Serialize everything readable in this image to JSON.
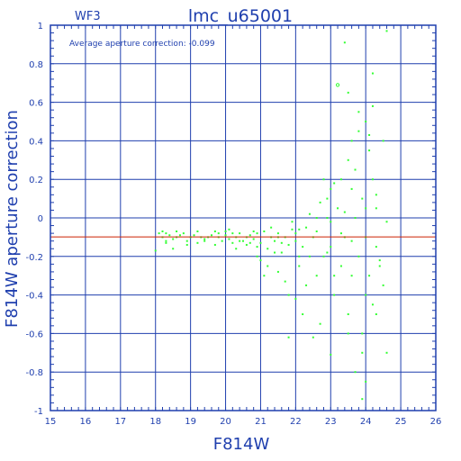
{
  "chart_data": {
    "type": "scatter",
    "title": "lmc_u65001",
    "chip_label": "WF3",
    "annotation": "Average aperture correction: -0.099",
    "xlabel": "F814W",
    "ylabel": "F814W aperture correction",
    "xlim": [
      15,
      26
    ],
    "ylim": [
      -1,
      1
    ],
    "x_ticks": [
      15,
      16,
      17,
      18,
      19,
      20,
      21,
      22,
      23,
      24,
      25,
      26
    ],
    "y_ticks": [
      -1,
      -0.8,
      -0.6,
      -0.4,
      -0.2,
      0,
      0.2,
      0.4,
      0.6,
      0.8,
      1
    ],
    "y_tick_labels": [
      "-1",
      "-0.8",
      "-0.6",
      "-0.4",
      "-0.2",
      "0",
      "0.2",
      "0.4",
      "0.6",
      "0.8",
      "1"
    ],
    "grid": true,
    "reference_line": -0.099,
    "colors": {
      "axes": "#1f3fae",
      "points": "#33ff33",
      "reference_line": "#cc2200"
    },
    "points": [
      [
        18.1,
        -0.08
      ],
      [
        18.2,
        -0.1
      ],
      [
        18.3,
        -0.12
      ],
      [
        18.2,
        -0.07
      ],
      [
        18.4,
        -0.09
      ],
      [
        18.5,
        -0.11
      ],
      [
        18.3,
        -0.08
      ],
      [
        18.6,
        -0.1
      ],
      [
        18.7,
        -0.09
      ],
      [
        18.9,
        -0.12
      ],
      [
        19.0,
        -0.1
      ],
      [
        18.8,
        -0.08
      ],
      [
        19.2,
        -0.13
      ],
      [
        19.4,
        -0.11
      ],
      [
        19.6,
        -0.09
      ],
      [
        19.7,
        -0.07
      ],
      [
        19.8,
        -0.1
      ],
      [
        19.9,
        -0.12
      ],
      [
        20.0,
        -0.09
      ],
      [
        20.1,
        -0.11
      ],
      [
        20.2,
        -0.13
      ],
      [
        20.3,
        -0.1
      ],
      [
        20.4,
        -0.08
      ],
      [
        20.5,
        -0.12
      ],
      [
        20.6,
        -0.14
      ],
      [
        20.7,
        -0.09
      ],
      [
        20.8,
        -0.11
      ],
      [
        20.9,
        -0.15
      ],
      [
        21.0,
        -0.13
      ],
      [
        21.1,
        -0.07
      ],
      [
        21.2,
        -0.16
      ],
      [
        21.3,
        -0.1
      ],
      [
        21.4,
        -0.12
      ],
      [
        21.5,
        -0.08
      ],
      [
        21.6,
        -0.18
      ],
      [
        21.7,
        -0.1
      ],
      [
        21.8,
        -0.14
      ],
      [
        21.9,
        -0.06
      ],
      [
        22.0,
        -0.12
      ],
      [
        22.1,
        -0.2
      ],
      [
        20.0,
        -0.07
      ],
      [
        20.2,
        -0.08
      ],
      [
        19.5,
        -0.1
      ],
      [
        19.1,
        -0.09
      ],
      [
        18.9,
        -0.14
      ],
      [
        18.5,
        -0.16
      ],
      [
        18.0,
        -0.17
      ],
      [
        19.3,
        -0.1
      ],
      [
        20.6,
        -0.1
      ],
      [
        20.9,
        -0.08
      ],
      [
        21.0,
        -0.22
      ],
      [
        21.2,
        -0.25
      ],
      [
        21.1,
        -0.3
      ],
      [
        21.5,
        -0.28
      ],
      [
        21.7,
        -0.33
      ],
      [
        21.8,
        -0.4
      ],
      [
        22.0,
        -0.42
      ],
      [
        22.1,
        -0.25
      ],
      [
        22.2,
        -0.15
      ],
      [
        22.3,
        -0.05
      ],
      [
        22.4,
        0.02
      ],
      [
        22.5,
        -0.1
      ],
      [
        22.6,
        -0.3
      ],
      [
        22.7,
        -0.55
      ],
      [
        22.8,
        -0.2
      ],
      [
        22.9,
        0.1
      ],
      [
        23.0,
        -0.15
      ],
      [
        23.0,
        0.15
      ],
      [
        23.1,
        -0.4
      ],
      [
        23.2,
        0.05
      ],
      [
        23.3,
        -0.25
      ],
      [
        23.3,
        0.2
      ],
      [
        23.4,
        -0.1
      ],
      [
        23.5,
        0.3
      ],
      [
        23.5,
        -0.5
      ],
      [
        23.6,
        0.4
      ],
      [
        23.6,
        -0.3
      ],
      [
        23.7,
        0.0
      ],
      [
        23.7,
        0.25
      ],
      [
        23.8,
        -0.2
      ],
      [
        23.8,
        0.55
      ],
      [
        23.9,
        -0.6
      ],
      [
        23.9,
        0.1
      ],
      [
        24.0,
        -0.4
      ],
      [
        24.0,
        0.5
      ],
      [
        24.0,
        -0.1
      ],
      [
        24.1,
        0.35
      ],
      [
        24.1,
        -0.3
      ],
      [
        24.2,
        0.58
      ],
      [
        24.2,
        0.2
      ],
      [
        24.3,
        -0.15
      ],
      [
        24.3,
        0.05
      ],
      [
        24.4,
        -0.25
      ],
      [
        24.5,
        0.4
      ],
      [
        24.6,
        -0.02
      ],
      [
        23.4,
        0.91
      ],
      [
        23.2,
        0.69
      ],
      [
        24.6,
        0.97
      ],
      [
        23.0,
        -0.71
      ],
      [
        23.9,
        -0.94
      ],
      [
        24.6,
        -0.7
      ],
      [
        23.5,
        -0.6
      ],
      [
        22.5,
        -0.62
      ],
      [
        21.8,
        -0.62
      ],
      [
        22.2,
        -0.5
      ],
      [
        23.1,
        -0.3
      ],
      [
        22.7,
        0.08
      ],
      [
        23.8,
        0.45
      ],
      [
        24.1,
        0.43
      ],
      [
        23.3,
        -0.08
      ],
      [
        22.9,
        -0.18
      ],
      [
        22.4,
        -0.2
      ],
      [
        21.9,
        -0.02
      ],
      [
        22.6,
        -0.07
      ],
      [
        23.6,
        -0.12
      ],
      [
        24.4,
        -0.22
      ],
      [
        24.2,
        -0.45
      ],
      [
        23.9,
        -0.7
      ],
      [
        22.3,
        -0.35
      ],
      [
        21.6,
        -0.13
      ],
      [
        21.3,
        -0.05
      ],
      [
        20.8,
        -0.07
      ],
      [
        20.4,
        -0.12
      ],
      [
        19.8,
        -0.08
      ],
      [
        19.2,
        -0.07
      ],
      [
        18.6,
        -0.07
      ],
      [
        18.3,
        -0.13
      ],
      [
        22.8,
        0.2
      ],
      [
        23.1,
        0.18
      ],
      [
        23.6,
        0.15
      ],
      [
        24.3,
        0.12
      ],
      [
        24.0,
        0.05
      ],
      [
        23.4,
        0.03
      ],
      [
        23.0,
        -0.02
      ],
      [
        22.6,
        0.0
      ],
      [
        22.0,
        -0.08
      ],
      [
        21.4,
        -0.18
      ],
      [
        20.9,
        -0.2
      ],
      [
        20.3,
        -0.16
      ],
      [
        19.7,
        -0.14
      ],
      [
        24.5,
        -0.35
      ],
      [
        24.3,
        -0.5
      ],
      [
        23.7,
        -0.8
      ],
      [
        24.0,
        -0.85
      ],
      [
        23.5,
        0.65
      ],
      [
        24.2,
        0.75
      ],
      [
        22.9,
        0.0
      ],
      [
        22.1,
        -0.06
      ],
      [
        21.5,
        -0.1
      ],
      [
        20.7,
        -0.13
      ],
      [
        20.1,
        -0.06
      ],
      [
        19.4,
        -0.12
      ]
    ]
  }
}
